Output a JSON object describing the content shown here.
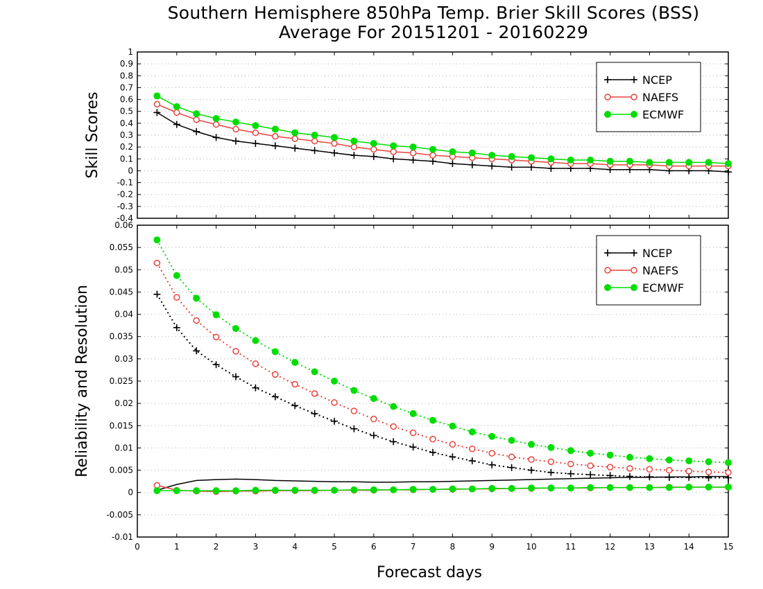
{
  "title": "Southern Hemisphere 850hPa Temp. Brier Skill Scores (BSS)",
  "subtitle": "Average For 20151201 - 20160229",
  "colors": {
    "NCEP": "#000000",
    "NAEFS": "#e8423c",
    "ECMWF": "#00dd00"
  },
  "chart_data": [
    {
      "type": "line",
      "ylabel": "Skill Scores",
      "xlabel": "",
      "xlim": [
        0,
        15
      ],
      "ylim": [
        -0.4,
        1
      ],
      "yticks": [
        "-0.4",
        "-0.3",
        "-0.2",
        "-0.1",
        "0",
        "0.1",
        "0.2",
        "0.3",
        "0.4",
        "0.5",
        "0.6",
        "0.7",
        "0.8",
        "0.9",
        "1"
      ],
      "grid": true,
      "legend": "top-right",
      "x": [
        0.5,
        1,
        1.5,
        2,
        2.5,
        3,
        3.5,
        4,
        4.5,
        5,
        5.5,
        6,
        6.5,
        7,
        7.5,
        8,
        8.5,
        9,
        9.5,
        10,
        10.5,
        11,
        11.5,
        12,
        12.5,
        13,
        13.5,
        14,
        14.5,
        15
      ],
      "series": [
        {
          "name": "NCEP",
          "marker": "plus",
          "style": "solid",
          "values": [
            0.49,
            0.39,
            0.33,
            0.28,
            0.25,
            0.23,
            0.21,
            0.19,
            0.17,
            0.15,
            0.13,
            0.12,
            0.1,
            0.09,
            0.08,
            0.06,
            0.05,
            0.04,
            0.03,
            0.03,
            0.02,
            0.02,
            0.02,
            0.01,
            0.01,
            0.01,
            0.0,
            0.0,
            0.0,
            -0.01
          ]
        },
        {
          "name": "NAEFS",
          "marker": "open-circle",
          "style": "solid",
          "values": [
            0.56,
            0.49,
            0.43,
            0.39,
            0.35,
            0.32,
            0.29,
            0.27,
            0.25,
            0.23,
            0.2,
            0.18,
            0.16,
            0.15,
            0.13,
            0.12,
            0.11,
            0.1,
            0.09,
            0.08,
            0.07,
            0.06,
            0.06,
            0.05,
            0.05,
            0.05,
            0.04,
            0.04,
            0.04,
            0.04
          ]
        },
        {
          "name": "ECMWF",
          "marker": "filled-circle",
          "style": "solid",
          "values": [
            0.63,
            0.54,
            0.48,
            0.44,
            0.41,
            0.38,
            0.35,
            0.32,
            0.3,
            0.28,
            0.25,
            0.23,
            0.21,
            0.2,
            0.18,
            0.16,
            0.15,
            0.13,
            0.12,
            0.11,
            0.1,
            0.09,
            0.09,
            0.08,
            0.08,
            0.07,
            0.07,
            0.07,
            0.07,
            0.06
          ]
        }
      ]
    },
    {
      "type": "line",
      "ylabel": "Reliability and Resolution",
      "xlabel": "Forecast days",
      "xlim": [
        0,
        15
      ],
      "ylim": [
        -0.01,
        0.06
      ],
      "yticks": [
        "-0.01",
        "-0.005",
        "0",
        "0.005",
        "0.01",
        "0.015",
        "0.02",
        "0.025",
        "0.03",
        "0.035",
        "0.04",
        "0.045",
        "0.05",
        "0.055",
        "0.06"
      ],
      "xticks": [
        "0",
        "1",
        "2",
        "3",
        "4",
        "5",
        "6",
        "7",
        "8",
        "9",
        "10",
        "11",
        "12",
        "13",
        "14",
        "15"
      ],
      "grid": true,
      "legend": "top-right",
      "x": [
        0.5,
        1,
        1.5,
        2,
        2.5,
        3,
        3.5,
        4,
        4.5,
        5,
        5.5,
        6,
        6.5,
        7,
        7.5,
        8,
        8.5,
        9,
        9.5,
        10,
        10.5,
        11,
        11.5,
        12,
        12.5,
        13,
        13.5,
        14,
        14.5,
        15
      ],
      "series": [
        {
          "name": "NCEP",
          "marker": "plus",
          "style": "dotted",
          "values": [
            0.0445,
            0.037,
            0.0318,
            0.0287,
            0.026,
            0.0235,
            0.0215,
            0.0195,
            0.0177,
            0.016,
            0.0143,
            0.0128,
            0.0114,
            0.0102,
            0.009,
            0.008,
            0.0071,
            0.0062,
            0.0056,
            0.005,
            0.0045,
            0.0042,
            0.004,
            0.0038,
            0.0036,
            0.0035,
            0.0034,
            0.0034,
            0.0033,
            0.0033
          ]
        },
        {
          "name": "NAEFS",
          "marker": "open-circle",
          "style": "dotted",
          "values": [
            0.0515,
            0.0438,
            0.0386,
            0.0349,
            0.0317,
            0.0289,
            0.0265,
            0.0243,
            0.0222,
            0.0202,
            0.0183,
            0.0165,
            0.0148,
            0.0134,
            0.012,
            0.0108,
            0.0098,
            0.0088,
            0.008,
            0.0074,
            0.0069,
            0.0064,
            0.006,
            0.0057,
            0.0054,
            0.0052,
            0.005,
            0.0048,
            0.0046,
            0.0045
          ]
        },
        {
          "name": "ECMWF",
          "marker": "filled-circle",
          "style": "dotted",
          "values": [
            0.0567,
            0.0487,
            0.0436,
            0.0399,
            0.0368,
            0.0341,
            0.0316,
            0.0292,
            0.0271,
            0.025,
            0.0229,
            0.0211,
            0.0193,
            0.0177,
            0.0162,
            0.0149,
            0.0136,
            0.0126,
            0.0117,
            0.0108,
            0.0101,
            0.0094,
            0.0088,
            0.0084,
            0.0079,
            0.0076,
            0.0073,
            0.0071,
            0.0069,
            0.0067
          ]
        },
        {
          "name": "NCEP",
          "marker": "none",
          "style": "solid",
          "values": [
            0.0005,
            0.0018,
            0.0027,
            0.0029,
            0.003,
            0.0029,
            0.0027,
            0.0026,
            0.0025,
            0.0024,
            0.0024,
            0.0023,
            0.0023,
            0.0024,
            0.0024,
            0.0025,
            0.0026,
            0.0027,
            0.0028,
            0.0029,
            0.003,
            0.0031,
            0.0032,
            0.0033,
            0.0034,
            0.0034,
            0.0035,
            0.0035,
            0.0036,
            0.0036
          ]
        },
        {
          "name": "NAEFS",
          "marker": "open-circle",
          "style": "solid",
          "values": [
            0.0016,
            0.0005,
            0.0003,
            0.0002,
            0.0003,
            0.0003,
            0.0004,
            0.0004,
            0.0004,
            0.0005,
            0.0005,
            0.0005,
            0.0006,
            0.0006,
            0.0007,
            0.0007,
            0.0008,
            0.0008,
            0.0009,
            0.0009,
            0.001,
            0.001,
            0.001,
            0.0011,
            0.0011,
            0.0011,
            0.0012,
            0.0012,
            0.0012,
            0.0012
          ]
        },
        {
          "name": "ECMWF",
          "marker": "filled-circle",
          "style": "solid",
          "values": [
            0.0004,
            0.0004,
            0.0004,
            0.0004,
            0.0004,
            0.0005,
            0.0005,
            0.0005,
            0.0005,
            0.0005,
            0.0006,
            0.0006,
            0.0006,
            0.0007,
            0.0007,
            0.0008,
            0.0008,
            0.0009,
            0.0009,
            0.001,
            0.001,
            0.001,
            0.0011,
            0.0011,
            0.0011,
            0.0011,
            0.0011,
            0.0012,
            0.0012,
            0.0012
          ]
        }
      ]
    }
  ]
}
